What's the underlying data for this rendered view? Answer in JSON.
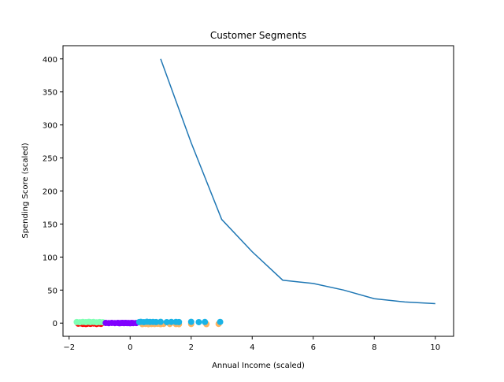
{
  "chart_data": {
    "type": "scatter",
    "title": "Customer Segments",
    "xlabel": "Annual Income (scaled)",
    "ylabel": "Spending Score (scaled)",
    "xlim": [
      -2.2,
      10.6
    ],
    "ylim": [
      -20,
      420
    ],
    "xticks": [
      -2,
      0,
      2,
      4,
      6,
      8,
      10
    ],
    "yticks": [
      0,
      50,
      100,
      150,
      200,
      250,
      300,
      350,
      400
    ],
    "grid": false,
    "legend": "none",
    "line_series": {
      "color": "#1f77b4",
      "x": [
        1,
        2,
        3,
        4,
        5,
        6,
        7,
        8,
        9,
        10
      ],
      "y": [
        400,
        273,
        157,
        108,
        65,
        60,
        50,
        37,
        32,
        29.5
      ]
    },
    "scatter_series": [
      {
        "color": "#ff0000",
        "x": [
          -1.7,
          -1.6,
          -1.55,
          -1.5,
          -1.45,
          -1.4,
          -1.35,
          -1.3,
          -1.2,
          -1.1,
          -1.0,
          -0.95
        ],
        "y": [
          -0.8,
          -0.5,
          -1.2,
          -0.4,
          -1.4,
          -0.9,
          -0.3,
          -1.1,
          -0.6,
          -1.3,
          -0.7,
          -1.0
        ]
      },
      {
        "color": "#80ffb4",
        "x": [
          -1.75,
          -1.65,
          -1.55,
          -1.45,
          -1.35,
          -1.3,
          -1.2,
          -1.1,
          -1.0,
          -0.9
        ],
        "y": [
          1.6,
          1.3,
          1.8,
          1.4,
          1.9,
          1.5,
          1.7,
          1.2,
          1.6,
          1.3
        ]
      },
      {
        "color": "#8000ff",
        "x": [
          -0.8,
          -0.7,
          -0.6,
          -0.5,
          -0.4,
          -0.35,
          -0.3,
          -0.25,
          -0.2,
          -0.15,
          -0.1,
          -0.05,
          0.0,
          0.05,
          0.1,
          0.2
        ],
        "y": [
          0.2,
          -0.1,
          0.3,
          0.0,
          0.2,
          -0.2,
          0.1,
          0.3,
          -0.1,
          0.2,
          0.0,
          0.1,
          -0.2,
          0.2,
          0.0,
          0.1
        ]
      },
      {
        "color": "#ffb360",
        "x": [
          0.4,
          0.5,
          0.6,
          0.7,
          0.8,
          0.9,
          1.0,
          1.1,
          1.3,
          1.5,
          1.6,
          2.0,
          2.5,
          2.9
        ],
        "y": [
          -1.5,
          -1.2,
          -1.6,
          -1.3,
          -1.4,
          -1.1,
          -1.5,
          -1.2,
          -1.3,
          -1.4,
          -1.6,
          -1.3,
          -1.5,
          -1.2
        ]
      },
      {
        "color": "#1ab3e6",
        "x": [
          0.3,
          0.35,
          0.45,
          0.55,
          0.65,
          0.75,
          0.85,
          1.0,
          1.2,
          1.35,
          1.5,
          1.6,
          2.0,
          2.25,
          2.45,
          2.95
        ],
        "y": [
          1.6,
          1.9,
          1.5,
          2.0,
          1.7,
          1.8,
          1.6,
          1.9,
          1.5,
          1.8,
          1.7,
          1.6,
          1.9,
          1.5,
          1.7,
          1.8
        ]
      }
    ]
  }
}
